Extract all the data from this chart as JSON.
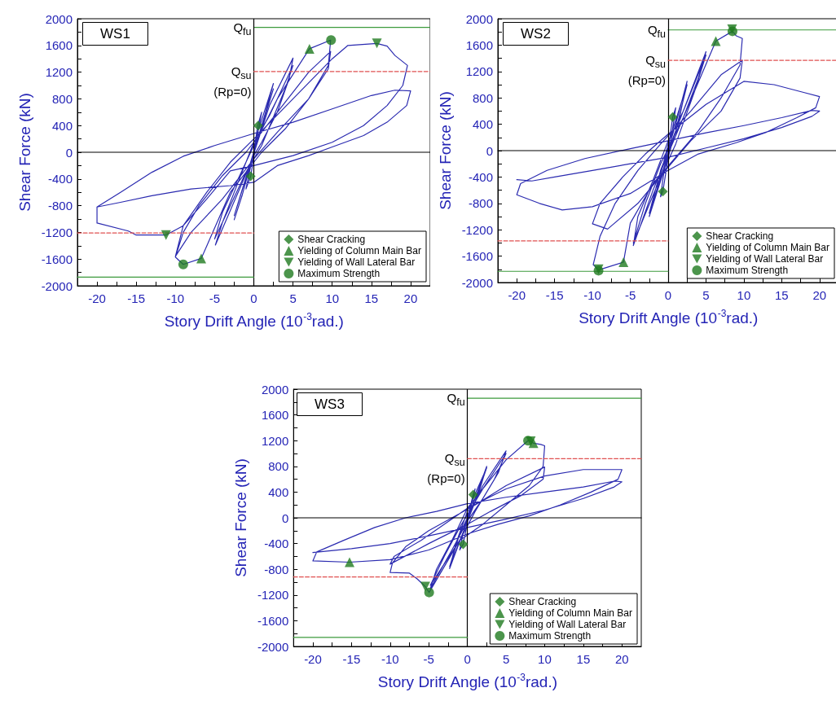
{
  "chart_data": [
    {
      "type": "line",
      "title": "WS1",
      "xlabel": "Story Drift Angle (10$^{-3}$rad.)",
      "ylabel": "Shear Force (kN)",
      "xlim": [
        -22.5,
        22.5
      ],
      "ylim": [
        -2000,
        2000
      ],
      "xticks": [
        -20,
        {
          "value": -17.5,
          "label": null
        },
        -15,
        {
          "value": -12.5,
          "label": null
        },
        -10,
        {
          "value": -7.5,
          "label": null
        },
        -5,
        {
          "value": -2.5,
          "label": null
        },
        0,
        {
          "value": 2.5,
          "label": null
        },
        5,
        {
          "value": 7.5,
          "label": null
        },
        10,
        {
          "value": 12.5,
          "label": null
        },
        15,
        {
          "value": 17.5,
          "label": null
        },
        20
      ],
      "yticks": [
        -2000,
        {
          "value": -1800,
          "label": null
        },
        -1600,
        {
          "value": -1400,
          "label": null
        },
        -1200,
        {
          "value": -1000,
          "label": null
        },
        -800,
        {
          "value": -600,
          "label": null
        },
        -400,
        {
          "value": -200,
          "label": null
        },
        0,
        {
          "value": 200,
          "label": null
        },
        400,
        {
          "value": 600,
          "label": null
        },
        800,
        {
          "value": 1000,
          "label": null
        },
        1200,
        {
          "value": 1400,
          "label": null
        },
        1600,
        {
          "value": 1800,
          "label": null
        },
        2000
      ],
      "legend": "bottom right",
      "series": [
        {
          "type": "line",
          "color": "#2b2bb0",
          "x": [
            0,
            0.5,
            1,
            0.3,
            -0.4,
            -1,
            -0.3,
            0.5,
            2.5,
            1.5,
            0,
            -1.5,
            -2.5,
            -1.5,
            0,
            2.5,
            0.5,
            -2.5,
            -0.5,
            2,
            5,
            4.5,
            3,
            1,
            0,
            -2,
            -4.9,
            -4,
            -2,
            0,
            2,
            5,
            4,
            1,
            -1,
            -5,
            -4,
            -2,
            0,
            3,
            7.1,
            9.8,
            9.5,
            7,
            4,
            1,
            -3,
            -6.7,
            -9,
            -10,
            -9,
            -7,
            -4,
            -1,
            3,
            7,
            9.8,
            9.5,
            7,
            3,
            0,
            -4,
            -8,
            -10,
            -9,
            -6,
            -3,
            0,
            5,
            10,
            12,
            15.7,
            17,
            18,
            19.6,
            19,
            17,
            14,
            10,
            5,
            0,
            -3,
            -6,
            -9,
            -11.2,
            -15,
            -16,
            -20,
            -20,
            -17,
            -13,
            -9,
            -5,
            0,
            5,
            10,
            15,
            18,
            20,
            19.5,
            17,
            14,
            10,
            7,
            3,
            0,
            -3,
            -8,
            -13,
            -17,
            -20
          ],
          "values": [
            0,
            400,
            600,
            150,
            -360,
            -550,
            -150,
            300,
            1030,
            600,
            0,
            -650,
            -1010,
            -650,
            0,
            950,
            200,
            -950,
            -200,
            700,
            1410,
            1100,
            600,
            150,
            -50,
            -600,
            -1390,
            -1050,
            -450,
            150,
            550,
            1300,
            950,
            100,
            -300,
            -1300,
            -900,
            -400,
            100,
            800,
            1550,
            1680,
            1300,
            800,
            350,
            0,
            -600,
            -1590,
            -1680,
            -1570,
            -1200,
            -800,
            -350,
            0,
            600,
            1200,
            1510,
            1250,
            800,
            300,
            -100,
            -700,
            -1200,
            -1560,
            -1100,
            -600,
            -150,
            200,
            800,
            1400,
            1600,
            1630,
            1590,
            1450,
            1300,
            1000,
            700,
            400,
            150,
            -50,
            -200,
            -280,
            -700,
            -1100,
            -1240,
            -1240,
            -1180,
            -1060,
            -820,
            -600,
            -300,
            -60,
            100,
            280,
            450,
            650,
            850,
            930,
            920,
            700,
            450,
            250,
            80,
            -50,
            -200,
            -450,
            -500,
            -550,
            -650,
            -750,
            -820
          ]
        },
        {
          "type": "line",
          "color": "#000000",
          "x": [
            -22.5,
            22.5
          ],
          "values": [
            0,
            0
          ]
        },
        {
          "type": "line",
          "name": "Q$_{fu}$",
          "color": "#3c9a3c",
          "x": [
            0,
            22.5
          ],
          "values": [
            1870,
            1870
          ]
        },
        {
          "type": "line",
          "color": "#3c9a3c",
          "x": [
            -22.5,
            0
          ],
          "values": [
            -1870,
            -1870
          ]
        },
        {
          "type": "line",
          "name": "Q$_{su}$\n(Rp=0)",
          "color": "#e05050",
          "line_style": "dashed",
          "x": [
            0,
            22.5
          ],
          "values": [
            1210,
            1210
          ]
        },
        {
          "type": "line",
          "color": "#e05050",
          "line_style": "dashed",
          "x": [
            -22.5,
            0
          ],
          "values": [
            -1210,
            -1210
          ]
        },
        {
          "type": "scatter",
          "name": "Shear Cracking",
          "marker": "diamond",
          "color": "#1f7a1f",
          "x": [
            0.55,
            -0.4
          ],
          "values": [
            400,
            -360
          ]
        },
        {
          "type": "scatter",
          "name": "Yielding of Column Main Bar",
          "marker": "triangle",
          "color": "#1f7a1f",
          "x": [
            7.1,
            -6.7
          ],
          "values": [
            1550,
            -1590
          ]
        },
        {
          "type": "scatter",
          "name": "Yielding of Wall Lateral Bar",
          "marker": "triangle-down",
          "color": "#1f7a1f",
          "x": [
            15.7,
            -11.2
          ],
          "values": [
            1630,
            -1240
          ]
        },
        {
          "type": "scatter",
          "name": "Maximum Strength",
          "marker": "circle",
          "color": "#1f7a1f",
          "x": [
            9.85,
            -9
          ],
          "values": [
            1680,
            -1680
          ]
        }
      ],
      "ref_lines": [
        {
          "axis": "x",
          "value": 0,
          "color": "#000000"
        }
      ]
    },
    {
      "type": "line",
      "title": "WS2",
      "xlabel": "Story Drift Angle (10$^{-3}$rad.)",
      "ylabel": "Shear Force (kN)",
      "xlim": [
        -22.5,
        22.5
      ],
      "ylim": [
        -2000,
        2000
      ],
      "xticks": [
        -20,
        {
          "value": -17.5,
          "label": null
        },
        -15,
        {
          "value": -12.5,
          "label": null
        },
        -10,
        {
          "value": -7.5,
          "label": null
        },
        -5,
        {
          "value": -2.5,
          "label": null
        },
        0,
        {
          "value": 2.5,
          "label": null
        },
        5,
        {
          "value": 7.5,
          "label": null
        },
        10,
        {
          "value": 12.5,
          "label": null
        },
        15,
        {
          "value": 17.5,
          "label": null
        },
        20
      ],
      "yticks": [
        -2000,
        {
          "value": -1800,
          "label": null
        },
        -1600,
        {
          "value": -1400,
          "label": null
        },
        -1200,
        {
          "value": -1000,
          "label": null
        },
        -800,
        {
          "value": -600,
          "label": null
        },
        -400,
        {
          "value": -200,
          "label": null
        },
        0,
        {
          "value": 200,
          "label": null
        },
        400,
        {
          "value": 600,
          "label": null
        },
        800,
        {
          "value": 1000,
          "label": null
        },
        1200,
        {
          "value": 1400,
          "label": null
        },
        1600,
        {
          "value": 1800,
          "label": null
        },
        2000
      ],
      "legend": "bottom right",
      "series": [
        {
          "type": "line",
          "color": "#2b2bb0",
          "x": [
            0,
            0.6,
            1,
            0.3,
            -0.7,
            -1,
            -0.3,
            1,
            2.5,
            1.5,
            0,
            -2.5,
            -1.5,
            0,
            2.5,
            1,
            -2.5,
            -1,
            2,
            5,
            4,
            2,
            0,
            -2,
            -4.6,
            -4,
            -2,
            0,
            2,
            5,
            3.5,
            1,
            -1,
            -4.6,
            -3,
            -1,
            2,
            6.3,
            8.5,
            9,
            9.8,
            9.5,
            7,
            4,
            1,
            -2,
            -5,
            -5.9,
            -9.2,
            -9.9,
            -9,
            -7,
            -4,
            -1,
            3,
            7,
            9.8,
            9.5,
            7,
            3,
            0,
            -4,
            -8,
            -10,
            -9,
            -6,
            -3,
            0,
            5,
            10,
            14,
            18,
            20,
            19.5,
            17,
            13,
            9,
            4,
            0,
            -5,
            -10,
            -14,
            -17,
            -20,
            -19.5,
            -16,
            -11,
            -5,
            0,
            5,
            10,
            15,
            19,
            20,
            19,
            15,
            10,
            5,
            0,
            -5,
            -10,
            -15,
            -18,
            -20
          ],
          "values": [
            0,
            510,
            650,
            100,
            -620,
            -700,
            -100,
            400,
            1050,
            500,
            -100,
            -1000,
            -600,
            100,
            1000,
            300,
            -950,
            -300,
            600,
            1500,
            1100,
            500,
            -50,
            -600,
            -1440,
            -1000,
            -450,
            150,
            600,
            1450,
            900,
            100,
            -400,
            -1400,
            -800,
            -200,
            500,
            1660,
            1810,
            1740,
            1700,
            1300,
            800,
            300,
            -100,
            -500,
            -1100,
            -1690,
            -1810,
            -1730,
            -1300,
            -800,
            -300,
            100,
            600,
            1150,
            1370,
            1100,
            600,
            150,
            -250,
            -800,
            -1190,
            -1110,
            -800,
            -400,
            -50,
            250,
            700,
            1050,
            1000,
            880,
            820,
            650,
            500,
            280,
            120,
            -50,
            -300,
            -650,
            -850,
            -900,
            -800,
            -670,
            -500,
            -300,
            -120,
            30,
            150,
            270,
            380,
            500,
            610,
            600,
            520,
            350,
            180,
            40,
            -100,
            -200,
            -300,
            -400,
            -460,
            -440
          ]
        },
        {
          "type": "line",
          "color": "#000000",
          "x": [
            -22.5,
            22.5
          ],
          "values": [
            0,
            0
          ]
        },
        {
          "type": "line",
          "name": "Q$_{fu}$",
          "color": "#3c9a3c",
          "x": [
            0,
            22.5
          ],
          "values": [
            1830,
            1830
          ]
        },
        {
          "type": "line",
          "color": "#3c9a3c",
          "x": [
            -22.5,
            0
          ],
          "values": [
            -1830,
            -1830
          ]
        },
        {
          "type": "line",
          "name": "Q$_{su}$\n(Rp=0)",
          "color": "#e05050",
          "line_style": "dashed",
          "x": [
            0,
            22.5
          ],
          "values": [
            1370,
            1370
          ]
        },
        {
          "type": "line",
          "color": "#e05050",
          "line_style": "dashed",
          "x": [
            -22.5,
            0
          ],
          "values": [
            -1370,
            -1370
          ]
        },
        {
          "type": "scatter",
          "name": "Shear Cracking",
          "marker": "diamond",
          "color": "#1f7a1f",
          "x": [
            0.6,
            -0.7
          ],
          "values": [
            510,
            -620
          ]
        },
        {
          "type": "scatter",
          "name": "Yielding of Column Main Bar",
          "marker": "triangle",
          "color": "#1f7a1f",
          "x": [
            6.3,
            -5.9
          ],
          "values": [
            1660,
            -1690
          ]
        },
        {
          "type": "scatter",
          "name": "Yielding of Wall Lateral Bar",
          "marker": "triangle-down",
          "color": "#1f7a1f",
          "x": [
            8.45,
            -9.2
          ],
          "values": [
            1840,
            -1800
          ]
        },
        {
          "type": "scatter",
          "name": "Maximum Strength",
          "marker": "circle",
          "color": "#1f7a1f",
          "x": [
            8.5,
            -9.2
          ],
          "values": [
            1810,
            -1820
          ]
        }
      ],
      "ref_lines": [
        {
          "axis": "x",
          "value": 0,
          "color": "#000000"
        }
      ]
    },
    {
      "type": "line",
      "title": "WS3",
      "xlabel": "Story Drift Angle (10$^{-3}$rad.)",
      "ylabel": "Shear Force (kN)",
      "xlim": [
        -22.5,
        22.5
      ],
      "ylim": [
        -2000,
        2000
      ],
      "xticks": [
        -20,
        {
          "value": -17.5,
          "label": null
        },
        -15,
        {
          "value": -12.5,
          "label": null
        },
        -10,
        {
          "value": -7.5,
          "label": null
        },
        -5,
        {
          "value": -2.5,
          "label": null
        },
        0,
        {
          "value": 2.5,
          "label": null
        },
        5,
        {
          "value": 7.5,
          "label": null
        },
        10,
        {
          "value": 12.5,
          "label": null
        },
        15,
        {
          "value": 17.5,
          "label": null
        },
        20
      ],
      "yticks": [
        -2000,
        {
          "value": -1800,
          "label": null
        },
        -1600,
        {
          "value": -1400,
          "label": null
        },
        -1200,
        {
          "value": -1000,
          "label": null
        },
        -800,
        {
          "value": -600,
          "label": null
        },
        -400,
        {
          "value": -200,
          "label": null
        },
        0,
        {
          "value": 200,
          "label": null
        },
        400,
        {
          "value": 600,
          "label": null
        },
        800,
        {
          "value": 1000,
          "label": null
        },
        1200,
        {
          "value": 1400,
          "label": null
        },
        1600,
        {
          "value": 1800,
          "label": null
        },
        2000
      ],
      "legend": "bottom right",
      "series": [
        {
          "type": "line",
          "color": "#2b2bb0",
          "x": [
            0,
            0.75,
            1,
            0.3,
            -0.55,
            -1,
            -0.3,
            1,
            2.5,
            1.5,
            0,
            -2.3,
            -1.5,
            0,
            2.5,
            1,
            -2.3,
            -1,
            2,
            5,
            4,
            2,
            0,
            -2,
            -4.8,
            -4,
            -2,
            0,
            2,
            5,
            3.5,
            1,
            -1,
            -4.8,
            -3,
            -1,
            2,
            5,
            7.85,
            8.2,
            8.55,
            9.5,
            10,
            9.8,
            8,
            5,
            2,
            -1,
            -4.95,
            -5.45,
            -6.5,
            -7.5,
            -10,
            -9.7,
            -8,
            -5,
            -2,
            1,
            5,
            10,
            9.8,
            7,
            3,
            0,
            -5,
            -10,
            -9.5,
            -6,
            -3,
            0,
            5,
            10,
            15,
            20,
            19.5,
            16,
            12,
            8,
            4,
            0,
            -5,
            -10,
            -15.25,
            -20,
            -19.5,
            -16,
            -12,
            -8,
            -4,
            0,
            5,
            10,
            15,
            19,
            20,
            19,
            15,
            10,
            5,
            0,
            -5,
            -10,
            -15,
            -20
          ],
          "values": [
            0,
            360,
            450,
            100,
            -410,
            -500,
            -100,
            300,
            800,
            400,
            -50,
            -790,
            -400,
            100,
            780,
            250,
            -760,
            -250,
            500,
            1040,
            700,
            300,
            -50,
            -500,
            -1100,
            -800,
            -350,
            150,
            450,
            1000,
            600,
            100,
            -350,
            -1050,
            -600,
            -150,
            450,
            900,
            1200,
            1190,
            1160,
            1140,
            1120,
            800,
            500,
            200,
            -100,
            -350,
            -1160,
            -1070,
            -950,
            -860,
            -850,
            -700,
            -450,
            -200,
            0,
            200,
            500,
            790,
            600,
            350,
            100,
            -100,
            -400,
            -720,
            -600,
            -350,
            -100,
            150,
            450,
            650,
            750,
            750,
            600,
            400,
            200,
            30,
            -100,
            -250,
            -500,
            -650,
            -690,
            -670,
            -530,
            -350,
            -150,
            0,
            100,
            220,
            320,
            400,
            480,
            570,
            560,
            480,
            300,
            120,
            -20,
            -150,
            -280,
            -400,
            -480,
            -540
          ]
        },
        {
          "type": "line",
          "color": "#000000",
          "x": [
            -22.5,
            22.5
          ],
          "values": [
            0,
            0
          ]
        },
        {
          "type": "line",
          "name": "Q$_{fu}$",
          "color": "#3c9a3c",
          "x": [
            0,
            22.5
          ],
          "values": [
            1860,
            1860
          ]
        },
        {
          "type": "line",
          "color": "#3c9a3c",
          "x": [
            -22.5,
            0
          ],
          "values": [
            -1860,
            -1860
          ]
        },
        {
          "type": "line",
          "name": "Q$_{su}$\n(Rp=0)",
          "color": "#e05050",
          "line_style": "dashed",
          "x": [
            0,
            22.5
          ],
          "values": [
            920,
            920
          ]
        },
        {
          "type": "line",
          "color": "#e05050",
          "line_style": "dashed",
          "x": [
            -22.5,
            0
          ],
          "values": [
            -920,
            -920
          ]
        },
        {
          "type": "scatter",
          "name": "Shear Cracking",
          "marker": "diamond",
          "color": "#1f7a1f",
          "x": [
            0.75,
            -0.55
          ],
          "values": [
            360,
            -410
          ]
        },
        {
          "type": "scatter",
          "name": "Yielding of Column Main Bar",
          "marker": "triangle",
          "color": "#1f7a1f",
          "x": [
            8.55,
            -15.25
          ],
          "values": [
            1160,
            -690
          ]
        },
        {
          "type": "scatter",
          "name": "Yielding of Wall Lateral Bar",
          "marker": "triangle-down",
          "color": "#1f7a1f",
          "x": [
            8.2,
            -5.45
          ],
          "values": [
            1190,
            -1070
          ]
        },
        {
          "type": "scatter",
          "name": "Maximum Strength",
          "marker": "circle",
          "color": "#1f7a1f",
          "x": [
            7.85,
            -4.95
          ],
          "values": [
            1200,
            -1160
          ]
        }
      ],
      "ref_lines": [
        {
          "axis": "x",
          "value": 0,
          "color": "#000000"
        }
      ]
    }
  ]
}
